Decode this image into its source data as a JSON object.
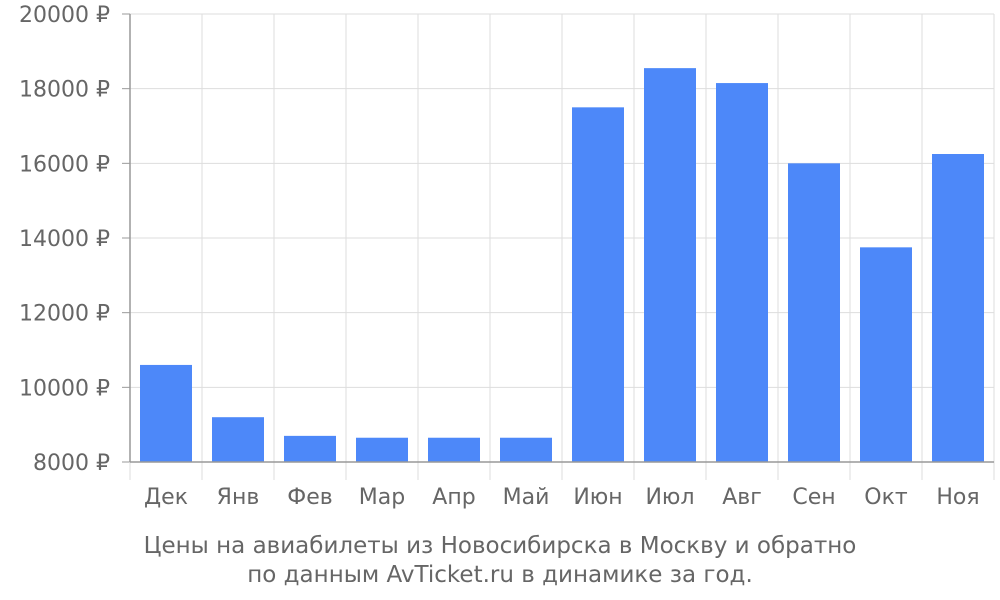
{
  "chart_data": {
    "type": "bar",
    "categories": [
      "Дек",
      "Янв",
      "Фев",
      "Мар",
      "Апр",
      "Май",
      "Июн",
      "Июл",
      "Авг",
      "Сен",
      "Окт",
      "Ноя"
    ],
    "values": [
      10600,
      9200,
      8700,
      8650,
      8650,
      8650,
      17500,
      18550,
      18150,
      16000,
      13750,
      16250
    ],
    "ylim": [
      8000,
      20000
    ],
    "yticks": [
      8000,
      10000,
      12000,
      14000,
      16000,
      18000,
      20000
    ],
    "ytick_labels": [
      "8000 ₽",
      "10000 ₽",
      "12000 ₽",
      "14000 ₽",
      "16000 ₽",
      "18000 ₽",
      "20000 ₽"
    ],
    "grid": true,
    "colors": {
      "bar": "#4d88f9",
      "grid": "#dddddd",
      "axis": "#999999",
      "text": "#666666"
    }
  },
  "caption": {
    "line1": "Цены на авиабилеты из Новосибирска в Москву и обратно",
    "line2": "по данным AvTicket.ru в динамике за год."
  }
}
